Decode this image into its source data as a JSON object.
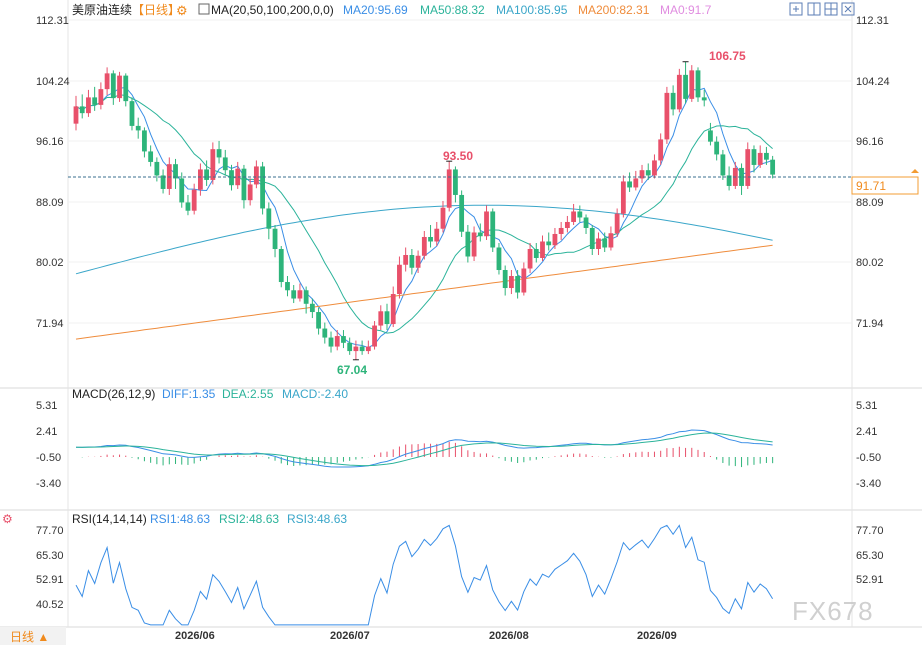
{
  "header": {
    "instrument": "美原油连续",
    "period_tag": "【日线】",
    "ma_label": "MA(20,50,100,200,0,0)",
    "ma_items": [
      {
        "label": "MA20:95.69",
        "color": "#3a8ee6"
      },
      {
        "label": "MA50:88.32",
        "color": "#2bb39a"
      },
      {
        "label": "MA100:85.95",
        "color": "#3aa6c9"
      },
      {
        "label": "MA200:82.31",
        "color": "#ef8c3c"
      },
      {
        "label": "MA0:91.7",
        "color": "#e08ce0"
      }
    ]
  },
  "toolbar": {
    "icons": [
      "add-indicator-icon",
      "split-view-icon",
      "grid-icon",
      "fullscreen-icon"
    ]
  },
  "price_panel": {
    "y_ticks": [
      "112.31",
      "104.24",
      "96.16",
      "88.09",
      "80.02",
      "71.94"
    ],
    "current_price": "91.71",
    "annotations": {
      "high": "106.75",
      "mid_high": "93.50",
      "low": "67.04"
    }
  },
  "macd_panel": {
    "title": "MACD(26,12,9)",
    "diff": "DIFF:1.35",
    "dea": "DEA:2.55",
    "macd": "MACD:-2.40",
    "y_ticks": [
      "5.31",
      "2.41",
      "-0.50",
      "-3.40"
    ]
  },
  "rsi_panel": {
    "title": "RSI(14,14,14)",
    "rsi1": "RSI1:48.63",
    "rsi2": "RSI2:48.63",
    "rsi3": "RSI3:48.63",
    "y_ticks": [
      "77.70",
      "65.30",
      "52.91",
      "40.52"
    ]
  },
  "x_axis": {
    "ticks": [
      "2026/06",
      "2026/07",
      "2026/08",
      "2026/09"
    ]
  },
  "footer": {
    "period_button": "日线 ▲",
    "watermark": "FX678"
  },
  "colors": {
    "up": "#e8506a",
    "down": "#2db47a",
    "ma20": "#3a8ee6",
    "ma50": "#2bb39a",
    "ma100": "#3aa6c9",
    "ma200": "#ef8c3c"
  },
  "chart_data": {
    "type": "candlestick",
    "ylim": [
      66,
      113
    ],
    "candles": [
      [
        98.5,
        100.8,
        97.6,
        102.2
      ],
      [
        100.8,
        99.9,
        99.2,
        102.4
      ],
      [
        99.9,
        102.0,
        99.4,
        103.0
      ],
      [
        102.0,
        101.0,
        100.2,
        103.4
      ],
      [
        101.0,
        103.1,
        100.4,
        104.0
      ],
      [
        103.1,
        105.2,
        102.3,
        106.0
      ],
      [
        105.2,
        101.9,
        101.0,
        105.6
      ],
      [
        101.9,
        104.9,
        101.4,
        105.4
      ],
      [
        104.9,
        101.5,
        100.8,
        105.2
      ],
      [
        101.5,
        98.2,
        97.6,
        102.0
      ],
      [
        98.2,
        97.6,
        96.5,
        99.3
      ],
      [
        97.6,
        94.8,
        94.0,
        98.0
      ],
      [
        94.8,
        93.4,
        92.8,
        95.6
      ],
      [
        93.4,
        91.6,
        90.8,
        94.0
      ],
      [
        91.6,
        89.8,
        89.2,
        92.4
      ],
      [
        89.8,
        93.1,
        89.0,
        94.0
      ],
      [
        93.1,
        91.2,
        89.8,
        93.8
      ],
      [
        91.2,
        88.0,
        87.3,
        92.0
      ],
      [
        88.0,
        86.9,
        86.3,
        89.0
      ],
      [
        86.9,
        89.7,
        86.4,
        90.5
      ],
      [
        89.7,
        92.4,
        88.9,
        93.2
      ],
      [
        92.4,
        91.0,
        90.2,
        93.6
      ],
      [
        91.0,
        95.1,
        90.4,
        96.0
      ],
      [
        95.1,
        94.0,
        93.2,
        96.2
      ],
      [
        94.0,
        92.3,
        91.6,
        95.0
      ],
      [
        92.3,
        90.3,
        89.6,
        93.0
      ],
      [
        90.3,
        92.5,
        89.8,
        93.4
      ],
      [
        92.5,
        88.3,
        87.2,
        93.0
      ],
      [
        88.3,
        90.4,
        87.6,
        91.2
      ],
      [
        90.4,
        92.8,
        89.9,
        93.6
      ],
      [
        92.8,
        87.2,
        86.4,
        93.4
      ],
      [
        87.2,
        84.5,
        83.1,
        88.0
      ],
      [
        84.5,
        81.8,
        80.7,
        85.0
      ],
      [
        81.8,
        77.4,
        76.7,
        82.2
      ],
      [
        77.4,
        76.3,
        75.5,
        78.2
      ],
      [
        76.3,
        75.2,
        74.6,
        77.0
      ],
      [
        75.2,
        76.3,
        74.8,
        77.2
      ],
      [
        76.3,
        74.5,
        73.2,
        76.8
      ],
      [
        74.5,
        73.4,
        72.6,
        75.2
      ],
      [
        73.4,
        71.2,
        70.4,
        74.0
      ],
      [
        71.2,
        70.0,
        69.2,
        72.0
      ],
      [
        70.0,
        68.8,
        68.0,
        70.8
      ],
      [
        68.8,
        70.2,
        68.3,
        71.0
      ],
      [
        70.2,
        69.3,
        68.6,
        71.0
      ],
      [
        69.3,
        68.2,
        67.7,
        70.0
      ],
      [
        68.2,
        68.8,
        67.04,
        69.6
      ],
      [
        68.8,
        68.2,
        67.7,
        69.6
      ],
      [
        68.2,
        68.8,
        67.8,
        69.6
      ],
      [
        68.8,
        71.6,
        68.4,
        72.2
      ],
      [
        71.6,
        73.5,
        71.0,
        74.3
      ],
      [
        73.5,
        71.8,
        71.0,
        74.5
      ],
      [
        71.8,
        75.8,
        71.4,
        76.8
      ],
      [
        75.8,
        79.7,
        75.2,
        80.8
      ],
      [
        79.7,
        81.0,
        78.8,
        82.0
      ],
      [
        81.0,
        79.3,
        78.4,
        81.8
      ],
      [
        79.3,
        80.9,
        78.6,
        81.6
      ],
      [
        80.9,
        83.4,
        80.4,
        84.2
      ],
      [
        83.4,
        82.8,
        82.0,
        85.0
      ],
      [
        82.8,
        84.5,
        82.2,
        85.4
      ],
      [
        84.5,
        87.3,
        84.0,
        88.2
      ],
      [
        87.3,
        92.4,
        86.8,
        93.5
      ],
      [
        92.4,
        89.0,
        88.0,
        92.8
      ],
      [
        89.0,
        84.1,
        83.4,
        89.6
      ],
      [
        84.1,
        80.8,
        80.0,
        85.0
      ],
      [
        80.8,
        84.0,
        80.2,
        84.8
      ],
      [
        84.0,
        83.5,
        82.8,
        85.2
      ],
      [
        83.5,
        86.8,
        83.0,
        87.6
      ],
      [
        86.8,
        82.0,
        81.4,
        87.2
      ],
      [
        82.0,
        79.0,
        78.4,
        82.6
      ],
      [
        79.0,
        76.6,
        75.6,
        79.6
      ],
      [
        76.6,
        78.2,
        75.8,
        79.0
      ],
      [
        78.2,
        76.0,
        75.2,
        79.0
      ],
      [
        76.0,
        79.2,
        75.6,
        80.0
      ],
      [
        79.2,
        81.8,
        78.6,
        82.6
      ],
      [
        81.8,
        80.6,
        80.0,
        82.6
      ],
      [
        80.6,
        82.8,
        80.2,
        83.6
      ],
      [
        82.8,
        82.3,
        81.6,
        84.0
      ],
      [
        82.3,
        83.8,
        81.8,
        84.6
      ],
      [
        83.8,
        84.6,
        83.0,
        85.4
      ],
      [
        84.6,
        85.4,
        84.0,
        86.2
      ],
      [
        85.4,
        86.8,
        85.0,
        87.8
      ],
      [
        86.8,
        86.0,
        85.4,
        87.6
      ],
      [
        86.0,
        84.6,
        83.8,
        86.4
      ],
      [
        84.6,
        81.8,
        81.0,
        85.0
      ],
      [
        81.8,
        83.2,
        81.0,
        84.0
      ],
      [
        83.2,
        82.0,
        81.4,
        84.0
      ],
      [
        82.0,
        83.9,
        81.6,
        84.8
      ],
      [
        83.9,
        86.5,
        83.4,
        87.2
      ],
      [
        86.5,
        90.8,
        86.0,
        91.6
      ],
      [
        90.8,
        90.0,
        89.4,
        92.0
      ],
      [
        90.0,
        91.2,
        89.6,
        92.2
      ],
      [
        91.2,
        92.3,
        90.6,
        93.0
      ],
      [
        92.3,
        91.6,
        91.0,
        93.2
      ],
      [
        91.6,
        93.6,
        91.2,
        94.4
      ],
      [
        93.6,
        96.4,
        93.0,
        97.2
      ],
      [
        96.4,
        102.6,
        95.8,
        103.4
      ],
      [
        102.6,
        100.4,
        99.6,
        103.6
      ],
      [
        100.4,
        105.0,
        100.0,
        105.8
      ],
      [
        105.0,
        101.8,
        101.2,
        106.75
      ],
      [
        101.8,
        105.6,
        101.4,
        106.3
      ],
      [
        105.6,
        102.0,
        101.4,
        106.0
      ],
      [
        102.0,
        101.6,
        100.8,
        103.0
      ],
      [
        97.6,
        96.1,
        95.6,
        98.6
      ],
      [
        96.1,
        94.4,
        93.6,
        96.8
      ],
      [
        94.4,
        91.6,
        91.0,
        95.0
      ],
      [
        91.6,
        90.2,
        89.6,
        92.8
      ],
      [
        90.2,
        92.6,
        89.8,
        93.4
      ],
      [
        92.6,
        90.2,
        89.0,
        93.2
      ],
      [
        90.2,
        95.1,
        89.8,
        96.0
      ],
      [
        95.1,
        93.0,
        92.0,
        95.6
      ],
      [
        93.0,
        94.6,
        92.6,
        95.6
      ],
      [
        94.6,
        93.7,
        93.0,
        95.4
      ],
      [
        93.7,
        91.71,
        91.2,
        94.2
      ]
    ]
  }
}
